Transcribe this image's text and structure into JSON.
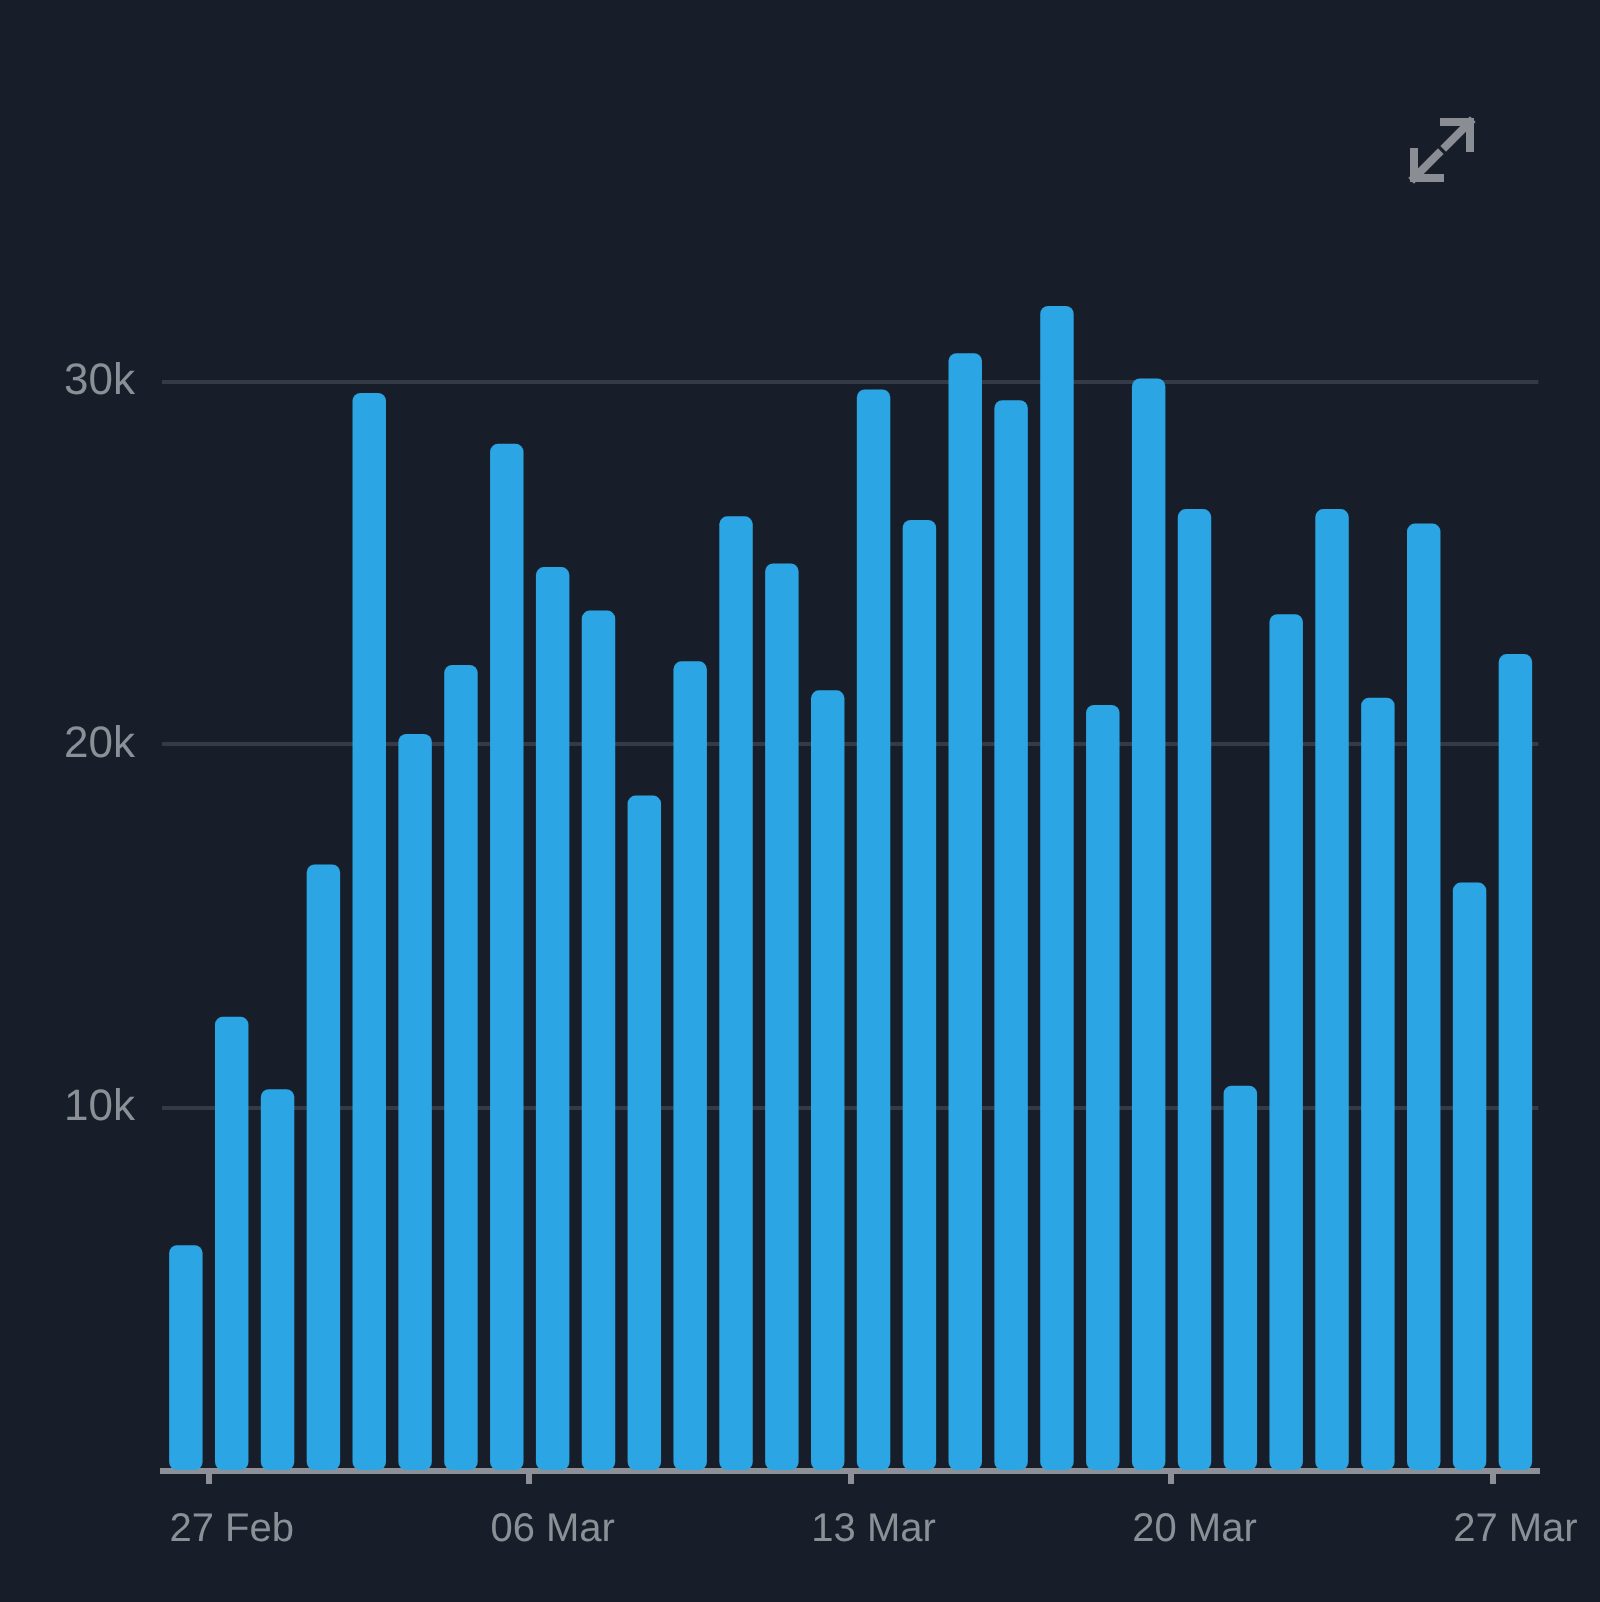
{
  "chart_data": {
    "type": "bar",
    "categories": [
      null,
      "27 Feb",
      null,
      null,
      null,
      null,
      null,
      null,
      "06 Mar",
      null,
      null,
      null,
      null,
      null,
      null,
      "13 Mar",
      null,
      null,
      null,
      null,
      null,
      null,
      "20 Mar",
      null,
      null,
      null,
      null,
      null,
      null,
      "27 Mar"
    ],
    "values": [
      6200,
      12500,
      10500,
      16700,
      29700,
      20300,
      22200,
      28300,
      24900,
      23700,
      18600,
      22300,
      26300,
      25000,
      21500,
      29800,
      26200,
      30800,
      29500,
      32100,
      21100,
      30100,
      26500,
      10600,
      23600,
      26500,
      21300,
      26100,
      16200,
      22500
    ],
    "color": "#2ca5e5",
    "ylim": [
      0,
      32100
    ],
    "yticks": [
      {
        "value": 10000,
        "label": "10k"
      },
      {
        "value": 20000,
        "label": "20k"
      },
      {
        "value": 30000,
        "label": "30k"
      }
    ],
    "grid": "y"
  }
}
